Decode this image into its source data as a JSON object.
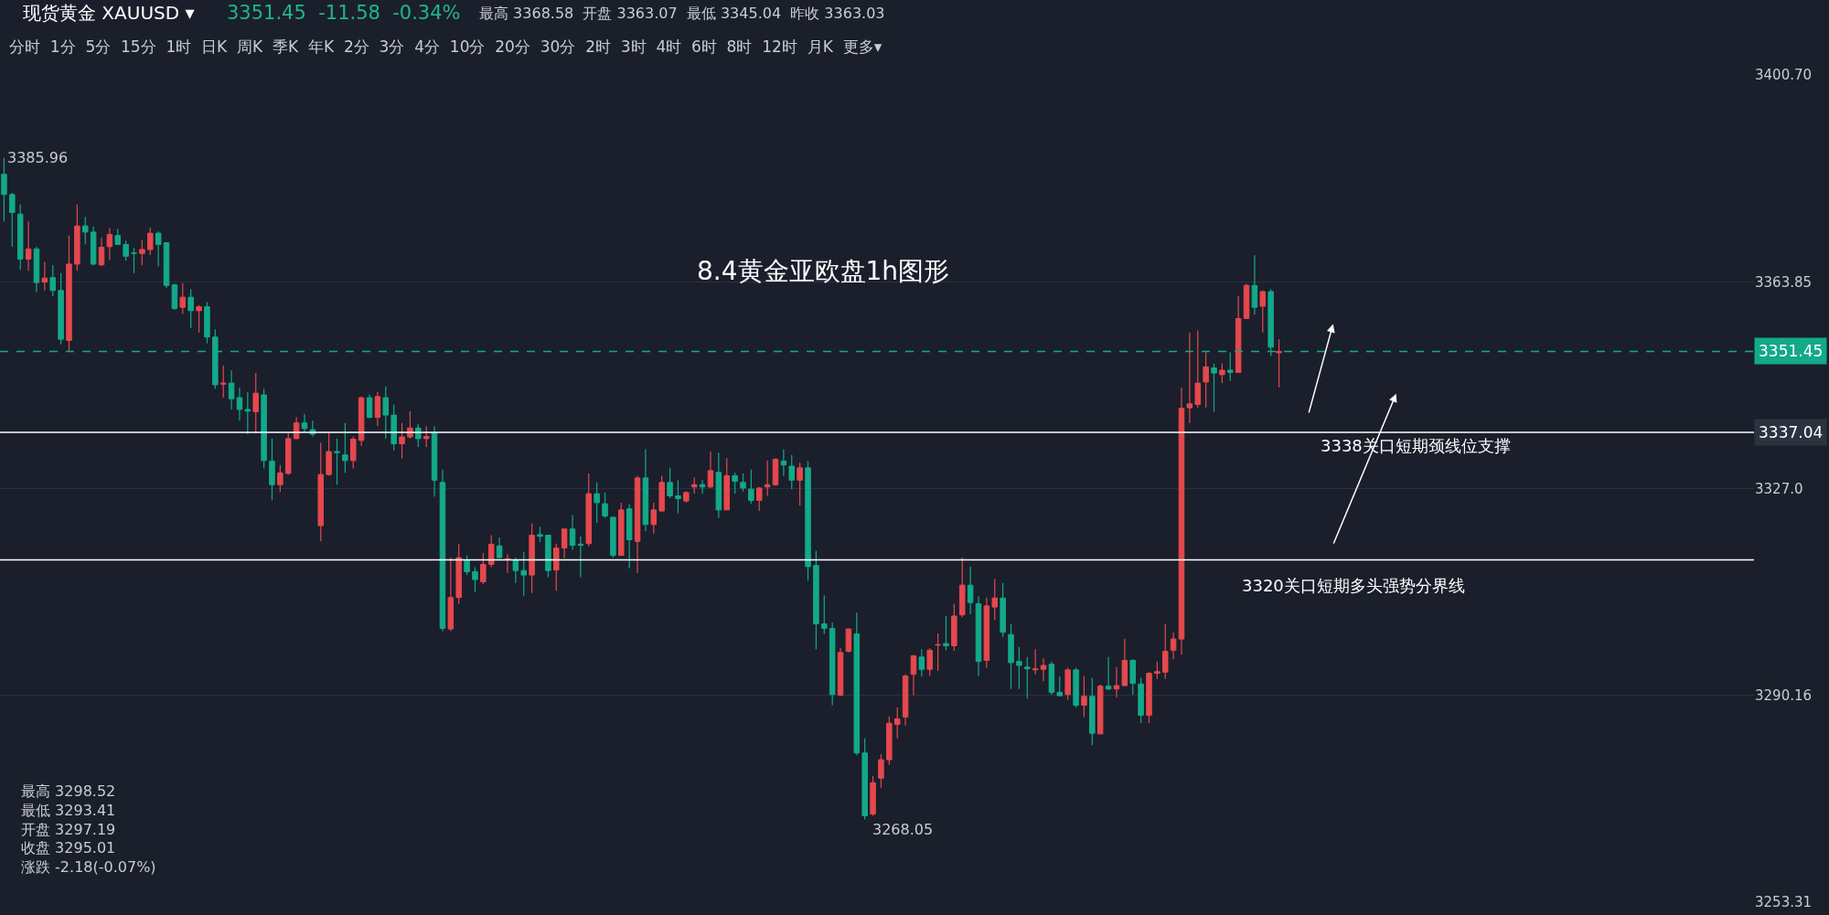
{
  "chart_data": {
    "type": "candlestick",
    "title": "8.4黄金亚欧盘1h图形",
    "categories": [
      null,
      null,
      null,
      null,
      null,
      null,
      null,
      null,
      null,
      null,
      null,
      null,
      null,
      null,
      null,
      null,
      null,
      null,
      null,
      null,
      null,
      null,
      null,
      null,
      null,
      null,
      null,
      null,
      null,
      null,
      null,
      null,
      null,
      null,
      null,
      null,
      null,
      null,
      null,
      null,
      null,
      null,
      null,
      null,
      null,
      null,
      null,
      null,
      null,
      null,
      null,
      null,
      null,
      null,
      null,
      null,
      null,
      null,
      null,
      null,
      null,
      null,
      null,
      null,
      null,
      null,
      null,
      null,
      null,
      null,
      null,
      null,
      null,
      null,
      null,
      null,
      null,
      null,
      null,
      null,
      null,
      null,
      null,
      null,
      null,
      null,
      null,
      null,
      null,
      null,
      null,
      null,
      null,
      null,
      null,
      null,
      null,
      null,
      null,
      null,
      null,
      null,
      null,
      null,
      null,
      null,
      null,
      null,
      null,
      null,
      null,
      null,
      null,
      null,
      null,
      null,
      null,
      null,
      null,
      null,
      null,
      null,
      null,
      null,
      null,
      null,
      null,
      null,
      null,
      null,
      null,
      null,
      null,
      null,
      null,
      null,
      null,
      null,
      null,
      null,
      null,
      null,
      null,
      null,
      null,
      null,
      null,
      null,
      null,
      null,
      null,
      null,
      null,
      null,
      null,
      null,
      null,
      null,
      null,
      null,
      null,
      null,
      null,
      null,
      null,
      null,
      null,
      null,
      null,
      null,
      null,
      null,
      null,
      null,
      null,
      null,
      null,
      null,
      null,
      null,
      null,
      null,
      null,
      null,
      null,
      null,
      null,
      null,
      null,
      null,
      null,
      null,
      null,
      null,
      null,
      null,
      null,
      null,
      null,
      null,
      null,
      null,
      null,
      null,
      null,
      null,
      null,
      null,
      null,
      null,
      null,
      null,
      null,
      null,
      null,
      null
    ],
    "ohlc": [
      [
        3383.0,
        3385.96,
        3374.6,
        3379.4
      ],
      [
        3379.4,
        3379.7,
        3370.1,
        3376.2
      ],
      [
        3375.9,
        3377.6,
        3366.0,
        3367.9
      ],
      [
        3367.9,
        3374.6,
        3365.8,
        3369.7
      ],
      [
        3369.7,
        3370.1,
        3362.0,
        3363.7
      ],
      [
        3363.8,
        3367.4,
        3362.3,
        3364.5
      ],
      [
        3364.6,
        3366.8,
        3361.3,
        3362.3
      ],
      [
        3362.3,
        3365.4,
        3352.7,
        3353.6
      ],
      [
        3353.4,
        3372.1,
        3351.5,
        3367.0
      ],
      [
        3367.0,
        3377.6,
        3365.8,
        3373.8
      ],
      [
        3373.8,
        3375.4,
        3370.5,
        3372.7
      ],
      [
        3372.7,
        3373.7,
        3366.8,
        3367.0
      ],
      [
        3366.9,
        3371.7,
        3366.6,
        3370.0
      ],
      [
        3370.1,
        3373.4,
        3367.7,
        3372.3
      ],
      [
        3372.1,
        3373.3,
        3370.4,
        3370.5
      ],
      [
        3370.5,
        3371.2,
        3367.6,
        3368.4
      ],
      [
        3369.0,
        3369.9,
        3365.4,
        3368.9
      ],
      [
        3368.9,
        3371.3,
        3366.8,
        3369.6
      ],
      [
        3369.6,
        3373.5,
        3368.6,
        3372.5
      ],
      [
        3372.5,
        3372.9,
        3366.6,
        3370.5
      ],
      [
        3370.8,
        3370.9,
        3362.7,
        3363.2
      ],
      [
        3363.3,
        3363.5,
        3358.9,
        3359.1
      ],
      [
        3359.3,
        3363.6,
        3358.1,
        3361.1
      ],
      [
        3361.1,
        3362.5,
        3355.6,
        3358.7
      ],
      [
        3358.7,
        3359.7,
        3354.8,
        3359.4
      ],
      [
        3359.4,
        3360.2,
        3352.9,
        3354.0
      ],
      [
        3354.0,
        3355.4,
        3344.8,
        3345.5
      ],
      [
        3345.6,
        3348.9,
        3343.2,
        3345.8
      ],
      [
        3345.8,
        3348.1,
        3341.1,
        3343.0
      ],
      [
        3343.2,
        3345.0,
        3339.1,
        3341.1
      ],
      [
        3341.1,
        3344.2,
        3336.7,
        3340.8
      ],
      [
        3340.7,
        3347.6,
        3336.9,
        3344.0
      ],
      [
        3343.7,
        3344.8,
        3330.6,
        3332.0
      ],
      [
        3331.9,
        3335.9,
        3324.9,
        3327.7
      ],
      [
        3327.7,
        3331.2,
        3326.4,
        3329.8
      ],
      [
        3329.7,
        3336.9,
        3329.5,
        3335.9
      ],
      [
        3335.9,
        3339.7,
        3335.8,
        3338.7
      ],
      [
        3338.7,
        3340.3,
        3337.1,
        3337.7
      ],
      [
        3337.5,
        3339.1,
        3336.3,
        3336.7
      ],
      [
        3320.4,
        3335.2,
        3317.6,
        3329.5
      ],
      [
        3329.5,
        3337.1,
        3329.3,
        3333.6
      ],
      [
        3333.6,
        3335.9,
        3327.7,
        3333.4
      ],
      [
        3333.0,
        3338.7,
        3329.8,
        3332.0
      ],
      [
        3332.0,
        3336.3,
        3330.6,
        3335.8
      ],
      [
        3335.6,
        3343.4,
        3334.6,
        3343.2
      ],
      [
        3343.2,
        3343.8,
        3339.5,
        3339.7
      ],
      [
        3339.7,
        3344.2,
        3338.1,
        3343.4
      ],
      [
        3343.2,
        3345.2,
        3335.9,
        3340.1
      ],
      [
        3340.1,
        3342.0,
        3333.8,
        3335.0
      ],
      [
        3335.0,
        3338.7,
        3332.4,
        3336.2
      ],
      [
        3336.2,
        3340.8,
        3335.9,
        3337.8
      ],
      [
        3337.8,
        3338.5,
        3334.4,
        3335.9
      ],
      [
        3335.9,
        3338.1,
        3334.4,
        3336.3
      ],
      [
        3336.9,
        3338.1,
        3325.6,
        3328.5
      ],
      [
        3328.1,
        3330.4,
        3301.6,
        3302.1
      ],
      [
        3302.0,
        3314.7,
        3301.6,
        3307.6
      ],
      [
        3307.6,
        3317.1,
        3306.5,
        3314.7
      ],
      [
        3314.3,
        3315.1,
        3311.6,
        3312.2
      ],
      [
        3312.2,
        3313.0,
        3308.6,
        3310.8
      ],
      [
        3310.4,
        3315.5,
        3310.0,
        3313.5
      ],
      [
        3313.5,
        3318.7,
        3313.0,
        3317.1
      ],
      [
        3316.8,
        3318.3,
        3314.5,
        3314.7
      ],
      [
        3314.3,
        3315.3,
        3312.0,
        3314.5
      ],
      [
        3314.3,
        3314.7,
        3310.2,
        3312.4
      ],
      [
        3312.4,
        3315.7,
        3307.9,
        3311.6
      ],
      [
        3311.6,
        3320.8,
        3308.4,
        3318.7
      ],
      [
        3318.8,
        3320.2,
        3317.5,
        3318.5
      ],
      [
        3318.7,
        3318.7,
        3311.2,
        3312.4
      ],
      [
        3312.5,
        3317.2,
        3308.8,
        3316.4
      ],
      [
        3316.4,
        3319.8,
        3314.6,
        3319.8
      ],
      [
        3319.8,
        3322.3,
        3316.1,
        3316.9
      ],
      [
        3317.1,
        3318.5,
        3311.2,
        3316.9
      ],
      [
        3317.2,
        3329.7,
        3316.7,
        3326.1
      ],
      [
        3326.1,
        3328.1,
        3320.9,
        3324.5
      ],
      [
        3324.3,
        3326.3,
        3321.8,
        3322.1
      ],
      [
        3321.9,
        3321.9,
        3314.7,
        3315.1
      ],
      [
        3315.1,
        3324.5,
        3315.1,
        3323.2
      ],
      [
        3323.4,
        3324.2,
        3312.8,
        3317.9
      ],
      [
        3317.6,
        3329.3,
        3312.0,
        3328.9
      ],
      [
        3328.9,
        3334.0,
        3319.4,
        3320.6
      ],
      [
        3320.6,
        3324.5,
        3319.0,
        3323.2
      ],
      [
        3323.0,
        3329.3,
        3323.0,
        3328.1
      ],
      [
        3328.1,
        3330.7,
        3325.3,
        3325.7
      ],
      [
        3325.7,
        3328.5,
        3322.6,
        3325.2
      ],
      [
        3324.8,
        3326.5,
        3324.5,
        3326.3
      ],
      [
        3327.3,
        3329.0,
        3326.1,
        3327.7
      ],
      [
        3327.7,
        3328.5,
        3326.1,
        3327.3
      ],
      [
        3327.3,
        3333.6,
        3327.1,
        3330.2
      ],
      [
        3329.9,
        3333.4,
        3321.8,
        3323.2
      ],
      [
        3323.2,
        3332.4,
        3323.2,
        3329.3
      ],
      [
        3329.3,
        3329.8,
        3326.1,
        3328.3
      ],
      [
        3328.1,
        3329.7,
        3326.5,
        3327.1
      ],
      [
        3326.9,
        3330.4,
        3324.3,
        3324.9
      ],
      [
        3324.9,
        3327.3,
        3323.0,
        3327.1
      ],
      [
        3327.3,
        3332.0,
        3325.7,
        3327.7
      ],
      [
        3327.7,
        3332.4,
        3327.5,
        3332.2
      ],
      [
        3331.9,
        3334.0,
        3329.3,
        3331.2
      ],
      [
        3331.0,
        3333.0,
        3326.9,
        3328.5
      ],
      [
        3328.5,
        3331.6,
        3324.0,
        3330.7
      ],
      [
        3330.7,
        3331.9,
        3310.6,
        3313.1
      ],
      [
        3313.3,
        3315.9,
        3298.4,
        3302.9
      ],
      [
        3302.9,
        3308.0,
        3301.1,
        3302.1
      ],
      [
        3302.1,
        3303.1,
        3288.4,
        3290.3
      ],
      [
        3290.2,
        3298.6,
        3290.0,
        3297.8
      ],
      [
        3298.0,
        3302.1,
        3297.8,
        3302.0
      ],
      [
        3301.1,
        3304.9,
        3279.5,
        3279.9
      ],
      [
        3279.9,
        3282.5,
        3268.05,
        3268.7
      ],
      [
        3269.0,
        3275.8,
        3268.7,
        3274.6
      ],
      [
        3275.4,
        3279.7,
        3273.7,
        3278.7
      ],
      [
        3278.7,
        3286.4,
        3277.8,
        3285.2
      ],
      [
        3285.0,
        3288.0,
        3282.5,
        3286.0
      ],
      [
        3286.3,
        3293.9,
        3284.8,
        3293.6
      ],
      [
        3293.9,
        3297.4,
        3290.2,
        3297.2
      ],
      [
        3297.0,
        3298.4,
        3293.5,
        3294.8
      ],
      [
        3294.8,
        3298.6,
        3293.6,
        3298.2
      ],
      [
        3299.1,
        3301.2,
        3294.5,
        3299.2
      ],
      [
        3299.4,
        3304.3,
        3298.2,
        3299.0
      ],
      [
        3299.0,
        3306.5,
        3298.1,
        3304.3
      ],
      [
        3304.5,
        3314.7,
        3304.1,
        3309.8
      ],
      [
        3309.8,
        3313.1,
        3304.6,
        3306.7
      ],
      [
        3306.5,
        3307.8,
        3293.6,
        3296.2
      ],
      [
        3296.4,
        3307.6,
        3295.1,
        3306.1
      ],
      [
        3305.9,
        3310.9,
        3303.6,
        3307.5
      ],
      [
        3307.5,
        3310.2,
        3300.6,
        3301.4
      ],
      [
        3301.0,
        3302.9,
        3291.3,
        3296.0
      ],
      [
        3296.2,
        3298.8,
        3291.3,
        3295.5
      ],
      [
        3295.2,
        3297.0,
        3289.6,
        3294.9
      ],
      [
        3294.7,
        3298.4,
        3293.9,
        3294.9
      ],
      [
        3294.8,
        3296.8,
        3292.7,
        3295.5
      ],
      [
        3295.7,
        3296.2,
        3290.3,
        3290.7
      ],
      [
        3290.7,
        3293.5,
        3290.0,
        3290.1
      ],
      [
        3290.3,
        3295.1,
        3289.4,
        3294.7
      ],
      [
        3294.7,
        3295.1,
        3288.0,
        3288.4
      ],
      [
        3288.4,
        3293.6,
        3286.3,
        3290.0
      ],
      [
        3290.0,
        3293.3,
        3281.3,
        3283.4
      ],
      [
        3283.3,
        3292.1,
        3283.3,
        3291.8
      ],
      [
        3291.8,
        3297.0,
        3291.1,
        3291.3
      ],
      [
        3291.3,
        3295.2,
        3289.8,
        3291.9
      ],
      [
        3291.9,
        3300.2,
        3291.8,
        3296.4
      ],
      [
        3296.4,
        3296.6,
        3290.3,
        3292.3
      ],
      [
        3292.2,
        3293.3,
        3285.2,
        3286.6
      ],
      [
        3286.6,
        3294.3,
        3285.2,
        3294.1
      ],
      [
        3294.1,
        3296.2,
        3293.1,
        3294.4
      ],
      [
        3294.3,
        3302.9,
        3293.1,
        3298.0
      ],
      [
        3298.2,
        3301.4,
        3296.6,
        3300.2
      ],
      [
        3300.2,
        3345.0,
        3297.4,
        3341.3
      ],
      [
        3341.4,
        3354.8,
        3338.7,
        3342.1
      ],
      [
        3342.0,
        3355.2,
        3341.4,
        3345.8
      ],
      [
        3346.0,
        3351.3,
        3341.4,
        3348.7
      ],
      [
        3348.5,
        3349.3,
        3340.7,
        3347.6
      ],
      [
        3347.3,
        3349.3,
        3345.8,
        3348.1
      ],
      [
        3348.1,
        3351.3,
        3346.2,
        3347.7
      ],
      [
        3347.7,
        3361.3,
        3347.6,
        3357.3
      ],
      [
        3357.3,
        3363.5,
        3357.2,
        3363.2
      ],
      [
        3363.2,
        3368.58,
        3358.0,
        3359.3
      ],
      [
        3359.5,
        3362.3,
        3354.8,
        3362.1
      ],
      [
        3362.1,
        3362.5,
        3350.6,
        3352.2
      ],
      [
        3351.2,
        3353.6,
        3345.04,
        3351.45
      ],
      null,
      null,
      null,
      null,
      null,
      null,
      null,
      null,
      null,
      null,
      null,
      null,
      null,
      null,
      null,
      null,
      null,
      null,
      null,
      null,
      null,
      null,
      null,
      null,
      null,
      null,
      null,
      null,
      null,
      null,
      null,
      null,
      null,
      null,
      null,
      null,
      null,
      null,
      null,
      null,
      null,
      null,
      null,
      null,
      null,
      null,
      null,
      null,
      null,
      null,
      null,
      null,
      null,
      null,
      null,
      null,
      null,
      null
    ],
    "colors": [
      "#13a98a",
      "#13a98a",
      "#13a98a",
      "#e5484d",
      "#13a98a",
      "#e5484d",
      "#13a98a",
      "#13a98a",
      "#e5484d",
      "#e5484d",
      "#13a98a",
      "#13a98a",
      "#e5484d",
      "#e5484d",
      "#13a98a",
      "#13a98a",
      "#13a98a",
      "#e5484d",
      "#e5484d",
      "#13a98a",
      "#13a98a",
      "#13a98a",
      "#e5484d",
      "#13a98a",
      "#e5484d",
      "#13a98a",
      "#13a98a",
      "#e5484d",
      "#13a98a",
      "#13a98a",
      "#13a98a",
      "#e5484d",
      "#13a98a",
      "#13a98a",
      "#e5484d",
      "#e5484d",
      "#e5484d",
      "#13a98a",
      "#13a98a",
      "#e5484d",
      "#e5484d",
      "#13a98a",
      "#13a98a",
      "#e5484d",
      "#e5484d",
      "#13a98a",
      "#e5484d",
      "#13a98a",
      "#13a98a",
      "#e5484d",
      "#e5484d",
      "#13a98a",
      "#e5484d",
      "#13a98a",
      "#13a98a",
      "#e5484d",
      "#e5484d",
      "#13a98a",
      "#13a98a",
      "#e5484d",
      "#e5484d",
      "#13a98a",
      "#e5484d",
      "#13a98a",
      "#13a98a",
      "#e5484d",
      "#13a98a",
      "#13a98a",
      "#e5484d",
      "#e5484d",
      "#13a98a",
      "#13a98a",
      "#e5484d",
      "#13a98a",
      "#13a98a",
      "#13a98a",
      "#e5484d",
      "#13a98a",
      "#e5484d",
      "#13a98a",
      "#e5484d",
      "#e5484d",
      "#13a98a",
      "#13a98a",
      "#e5484d",
      "#e5484d",
      "#13a98a",
      "#e5484d",
      "#13a98a",
      "#e5484d",
      "#13a98a",
      "#13a98a",
      "#13a98a",
      "#e5484d",
      "#e5484d",
      "#e5484d",
      "#13a98a",
      "#13a98a",
      "#e5484d",
      "#13a98a",
      "#13a98a",
      "#13a98a",
      "#13a98a",
      "#e5484d",
      "#e5484d",
      "#13a98a",
      "#13a98a",
      "#e5484d",
      "#e5484d",
      "#e5484d",
      "#e5484d",
      "#e5484d",
      "#e5484d",
      "#13a98a",
      "#e5484d",
      "#e5484d",
      "#13a98a",
      "#e5484d",
      "#e5484d",
      "#13a98a",
      "#13a98a",
      "#e5484d",
      "#e5484d",
      "#13a98a",
      "#13a98a",
      "#13a98a",
      "#13a98a",
      "#e5484d",
      "#e5484d",
      "#13a98a",
      "#13a98a",
      "#e5484d",
      "#13a98a",
      "#e5484d",
      "#13a98a",
      "#e5484d",
      "#13a98a",
      "#e5484d",
      "#e5484d",
      "#13a98a",
      "#13a98a",
      "#e5484d",
      "#e5484d",
      "#e5484d",
      "#e5484d",
      "#e5484d",
      "#e5484d",
      "#e5484d",
      "#e5484d",
      "#13a98a",
      "#e5484d",
      "#13a98a",
      "#e5484d",
      "#e5484d",
      "#13a98a",
      "#e5484d",
      "#13a98a",
      "#e5484d",
      null,
      null,
      null,
      null,
      null,
      null,
      null,
      null,
      null,
      null,
      null,
      null,
      null,
      null,
      null,
      null,
      null,
      null,
      null,
      null,
      null,
      null,
      null,
      null,
      null,
      null,
      null,
      null,
      null,
      null,
      null,
      null,
      null,
      null,
      null,
      null,
      null,
      null,
      null,
      null,
      null,
      null,
      null,
      null,
      null,
      null,
      null,
      null,
      null,
      null,
      null,
      null,
      null,
      null,
      null,
      null,
      null,
      null
    ],
    "ylim": [
      3253.31,
      3400.7
    ],
    "yticks": [
      {
        "value": 3400.7,
        "label": "3400.70"
      },
      3363.85,
      {
        "value": 3327.0,
        "label": "3327.0"
      },
      3290.16,
      3253.31
    ],
    "ref_lines": [
      {
        "axis": "y",
        "value": 3351.45,
        "label": "3351.45",
        "color": "#13a98a",
        "line_style": "dashed"
      },
      {
        "axis": "y",
        "value": 3337.04,
        "label": "3337.04",
        "color": "#ffffff"
      },
      {
        "axis": "y",
        "value": 3314.3,
        "label": null,
        "color": "#ffffff"
      }
    ],
    "annotations": [
      "现货黄金 XAUUSD ▾",
      "3351.45  -11.58  -0.34%",
      "最高 3368.58  开盘 3363.07  最低 3345.04  昨收 3363.03",
      "分时  1分  5分  15分  1时  日K  周K  季K  年K  2分  3分  4分  10分  20分  30分  2时  3时  4时  6时  8时  12时  月K  更多▾",
      "最高 3298.52\n最低 3293.41\n开盘 3297.19\n收盘 3295.01\n涨跌 -2.18(-0.07%)",
      "3385.96",
      "3268.05",
      "3338关口短期颈线位支撑",
      "3320关口短期多头强势分界线"
    ],
    "grid": "y"
  }
}
